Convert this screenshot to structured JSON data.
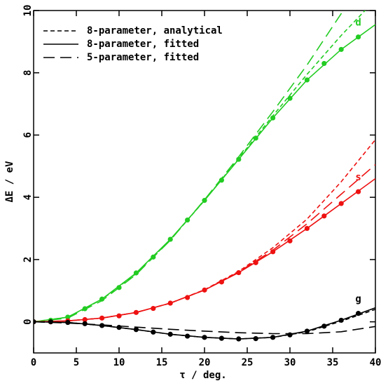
{
  "chart_data": {
    "type": "line",
    "xlabel": "τ / deg.",
    "ylabel": "ΔE / eV",
    "xlim": [
      0,
      40
    ],
    "ylim": [
      -1,
      10
    ],
    "xticks": [
      0,
      5,
      10,
      15,
      20,
      25,
      30,
      35,
      40
    ],
    "yticks": [
      0,
      2,
      4,
      6,
      8,
      10
    ],
    "legend": [
      {
        "label": "8-parameter, analytical",
        "dash": "short"
      },
      {
        "label": "8-parameter, fitted",
        "dash": "solid"
      },
      {
        "label": "5-parameter, fitted",
        "dash": "long"
      }
    ],
    "curve_x": [
      0,
      4,
      8,
      12,
      16,
      20,
      24,
      28,
      32,
      36,
      40
    ],
    "series": [
      {
        "name": "d",
        "color": "#22cc22",
        "x": [
          0,
          2,
          4,
          6,
          8,
          10,
          12,
          14,
          16,
          18,
          20,
          22,
          24,
          26,
          28,
          30,
          32,
          34,
          36,
          38
        ],
        "values": [
          0,
          0.05,
          0.15,
          0.42,
          0.73,
          1.1,
          1.57,
          2.08,
          2.65,
          3.27,
          3.9,
          4.55,
          5.22,
          5.9,
          6.55,
          7.18,
          7.77,
          8.3,
          8.75,
          9.15
        ],
        "fitted": [
          0,
          0.15,
          0.73,
          1.57,
          2.65,
          3.9,
          5.22,
          6.55,
          7.77,
          8.75,
          9.55
        ],
        "analytical": [
          0,
          0.15,
          0.72,
          1.55,
          2.63,
          3.9,
          5.25,
          6.62,
          7.95,
          9.2,
          10.35
        ],
        "five_parameter": [
          0,
          0.12,
          0.68,
          1.52,
          2.62,
          3.92,
          5.3,
          6.75,
          8.25,
          9.9,
          11.5
        ]
      },
      {
        "name": "s",
        "color": "#ee1111",
        "x": [
          0,
          2,
          4,
          6,
          8,
          10,
          12,
          14,
          16,
          18,
          20,
          22,
          24,
          26,
          28,
          30,
          32,
          34,
          36,
          38
        ],
        "values": [
          0,
          0,
          0.03,
          0.07,
          0.12,
          0.19,
          0.3,
          0.43,
          0.6,
          0.78,
          1.02,
          1.28,
          1.58,
          1.9,
          2.25,
          2.6,
          3.0,
          3.4,
          3.8,
          4.18
        ],
        "fitted": [
          0,
          0.03,
          0.12,
          0.3,
          0.6,
          1.02,
          1.58,
          2.25,
          3.0,
          3.8,
          4.6
        ],
        "analytical": [
          0,
          0.03,
          0.12,
          0.3,
          0.6,
          1.03,
          1.62,
          2.38,
          3.3,
          4.5,
          5.85
        ],
        "five_parameter": [
          0,
          0.03,
          0.12,
          0.3,
          0.6,
          1.02,
          1.6,
          2.3,
          3.15,
          4.1,
          5.05
        ]
      },
      {
        "name": "g",
        "color": "#000000",
        "x": [
          0,
          2,
          4,
          6,
          8,
          10,
          12,
          14,
          16,
          18,
          20,
          22,
          24,
          26,
          28,
          30,
          32,
          34,
          36,
          38
        ],
        "values": [
          0,
          0,
          -0.02,
          -0.06,
          -0.12,
          -0.18,
          -0.25,
          -0.33,
          -0.4,
          -0.46,
          -0.5,
          -0.53,
          -0.55,
          -0.54,
          -0.5,
          -0.42,
          -0.3,
          -0.14,
          0.05,
          0.27
        ],
        "fitted": [
          0,
          -0.02,
          -0.12,
          -0.25,
          -0.4,
          -0.5,
          -0.55,
          -0.5,
          -0.3,
          0.05,
          0.45
        ],
        "analytical": [
          0,
          -0.02,
          -0.12,
          -0.25,
          -0.4,
          -0.5,
          -0.55,
          -0.5,
          -0.32,
          0.02,
          0.4
        ],
        "five_parameter": [
          0,
          -0.04,
          -0.1,
          -0.17,
          -0.24,
          -0.3,
          -0.35,
          -0.38,
          -0.38,
          -0.32,
          -0.15
        ]
      }
    ]
  }
}
